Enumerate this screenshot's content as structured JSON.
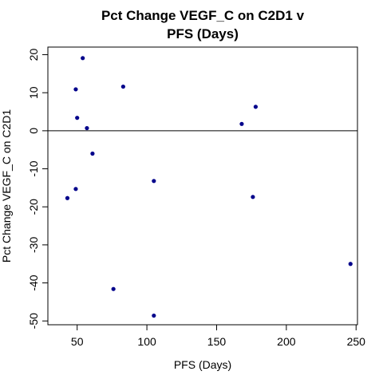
{
  "chart_data": {
    "type": "scatter",
    "title_lines": [
      "Pct Change VEGF_C on C2D1 v",
      "PFS (Days)"
    ],
    "xlabel": "PFS (Days)",
    "ylabel": "Pct Change VEGF_C on C2D1",
    "xlim": [
      29,
      251
    ],
    "ylim": [
      -51,
      22
    ],
    "xticks": [
      50,
      100,
      150,
      200,
      250
    ],
    "yticks": [
      -50,
      -40,
      -30,
      -20,
      -10,
      0,
      10,
      20
    ],
    "reference_line_y": 0,
    "grid": false,
    "legend": "none",
    "point_color": "#00008B",
    "points": [
      {
        "x": 43,
        "y": -17.7
      },
      {
        "x": 49,
        "y": 10.9
      },
      {
        "x": 49,
        "y": -15.3
      },
      {
        "x": 50,
        "y": 3.4
      },
      {
        "x": 54,
        "y": 19.1
      },
      {
        "x": 57,
        "y": 0.7
      },
      {
        "x": 61,
        "y": -6.0
      },
      {
        "x": 76,
        "y": -41.6
      },
      {
        "x": 83,
        "y": 11.6
      },
      {
        "x": 105,
        "y": -13.2
      },
      {
        "x": 105,
        "y": -48.6
      },
      {
        "x": 168,
        "y": 1.8
      },
      {
        "x": 176,
        "y": -17.4
      },
      {
        "x": 178,
        "y": 6.3
      },
      {
        "x": 246,
        "y": -35.0
      }
    ]
  }
}
